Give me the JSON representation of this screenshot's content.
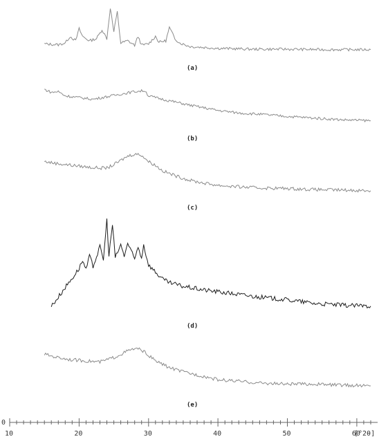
{
  "chart_data": {
    "type": "line",
    "title": "",
    "xlabel": "[°2θ]",
    "ylabel": "",
    "y_axis_label": "0",
    "xlim": [
      10,
      63
    ],
    "x_ticks": [
      10,
      20,
      30,
      40,
      50,
      60
    ],
    "x_tick_labels": [
      "10",
      "20",
      "30",
      "40",
      "50",
      "60"
    ],
    "unit_label": "[°2θ]",
    "grid": false,
    "legend": "none",
    "colors": {
      "light": "#8a8a8a",
      "dark": "#1c1c1c"
    },
    "panels": [
      {
        "label": "(a)",
        "style": "light",
        "x": [
          15,
          17,
          18,
          18.7,
          19.5,
          20,
          20.5,
          21.5,
          22.5,
          23.3,
          24,
          24.5,
          25,
          25.5,
          26,
          27,
          28,
          28.5,
          29,
          30,
          31,
          31.5,
          32.5,
          33,
          33.8,
          34.5,
          36,
          38,
          40,
          45,
          50,
          55,
          60,
          62
        ],
        "y": [
          0.18,
          0.16,
          0.2,
          0.35,
          0.25,
          0.52,
          0.35,
          0.25,
          0.3,
          0.5,
          0.3,
          1.0,
          0.45,
          0.9,
          0.2,
          0.25,
          0.15,
          0.35,
          0.15,
          0.18,
          0.35,
          0.22,
          0.25,
          0.55,
          0.3,
          0.2,
          0.12,
          0.1,
          0.08,
          0.06,
          0.06,
          0.05,
          0.05,
          0.05
        ]
      },
      {
        "label": "(b)",
        "style": "light",
        "x": [
          15,
          16,
          17,
          18,
          20,
          22,
          24,
          26,
          28,
          29.5,
          30,
          31,
          32,
          34,
          36,
          38,
          40,
          43,
          46,
          50,
          54,
          58,
          62
        ],
        "y": [
          0.85,
          0.78,
          0.8,
          0.7,
          0.66,
          0.62,
          0.68,
          0.74,
          0.8,
          0.82,
          0.7,
          0.66,
          0.62,
          0.55,
          0.48,
          0.42,
          0.36,
          0.3,
          0.27,
          0.22,
          0.18,
          0.14,
          0.12
        ]
      },
      {
        "label": "(c)",
        "style": "light",
        "x": [
          15,
          17,
          19,
          21,
          23,
          24,
          25,
          26,
          27,
          28,
          29,
          30,
          31,
          32,
          34,
          36,
          38,
          40,
          43,
          46,
          50,
          54,
          58,
          62
        ],
        "y": [
          0.62,
          0.58,
          0.55,
          0.52,
          0.5,
          0.5,
          0.56,
          0.64,
          0.72,
          0.76,
          0.74,
          0.62,
          0.55,
          0.45,
          0.35,
          0.27,
          0.22,
          0.18,
          0.15,
          0.13,
          0.12,
          0.1,
          0.09,
          0.08
        ]
      },
      {
        "label": "(d)",
        "style": "dark",
        "x": [
          16,
          17,
          18,
          19,
          20,
          20.5,
          21,
          21.5,
          22,
          23,
          23.5,
          24,
          24.3,
          24.8,
          25.2,
          26,
          26.5,
          27,
          28,
          28.5,
          29,
          29.3,
          30,
          31,
          32,
          33,
          35,
          38,
          42,
          46,
          50,
          54,
          58,
          62
        ],
        "y": [
          0.04,
          0.14,
          0.25,
          0.35,
          0.46,
          0.55,
          0.44,
          0.6,
          0.48,
          0.7,
          0.56,
          1.0,
          0.6,
          0.95,
          0.58,
          0.72,
          0.6,
          0.74,
          0.56,
          0.7,
          0.58,
          0.72,
          0.5,
          0.42,
          0.34,
          0.3,
          0.26,
          0.22,
          0.18,
          0.14,
          0.11,
          0.07,
          0.05,
          0.04
        ]
      },
      {
        "label": "(e)",
        "style": "light",
        "x": [
          15,
          17,
          19,
          21,
          23,
          25,
          27,
          28,
          29,
          30,
          31,
          33,
          35,
          38,
          40,
          42,
          44,
          46,
          50,
          54,
          58,
          62
        ],
        "y": [
          0.72,
          0.66,
          0.62,
          0.6,
          0.58,
          0.66,
          0.78,
          0.82,
          0.8,
          0.7,
          0.6,
          0.48,
          0.4,
          0.32,
          0.26,
          0.24,
          0.22,
          0.2,
          0.18,
          0.18,
          0.16,
          0.15
        ]
      }
    ]
  }
}
